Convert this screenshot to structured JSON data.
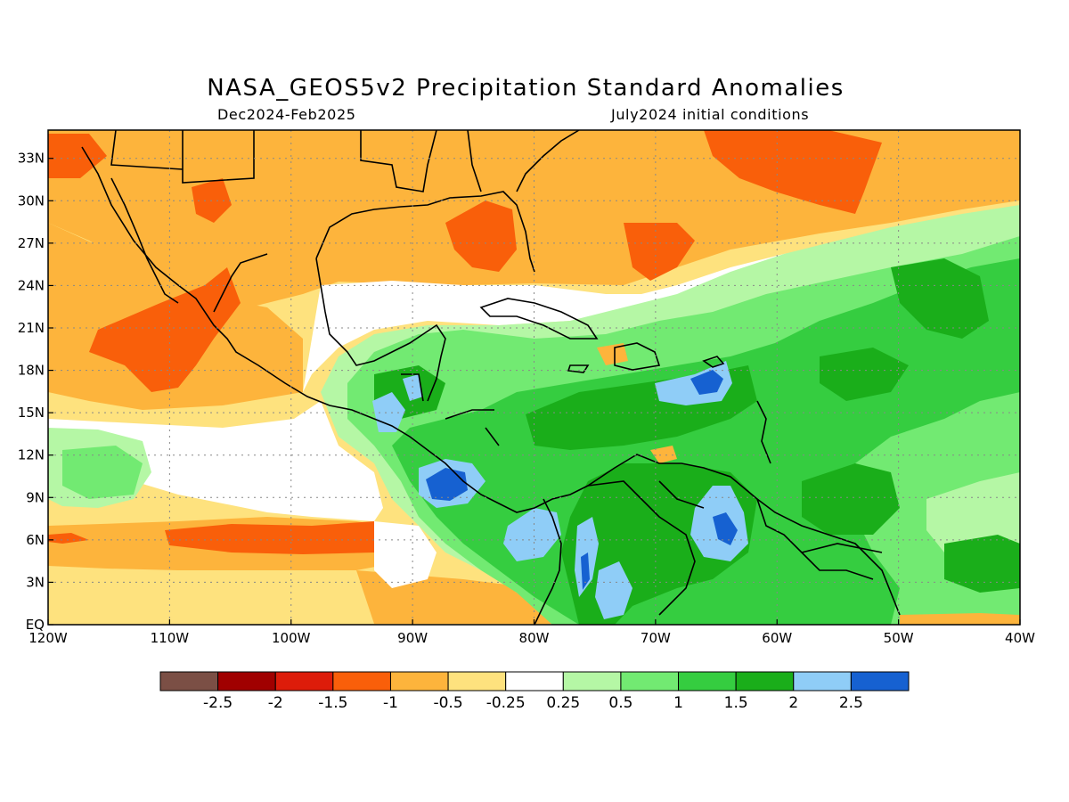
{
  "header": {
    "title": "NASA_GEOS5v2 Precipitation Standard Anomalies",
    "period": "Dec2024-Feb2025",
    "init": "July2024 initial conditions"
  },
  "map": {
    "lon_range": [
      -120,
      -40
    ],
    "lat_range": [
      0,
      35
    ],
    "lon_ticks": [
      {
        "v": -120,
        "label": "120W"
      },
      {
        "v": -110,
        "label": "110W"
      },
      {
        "v": -100,
        "label": "100W"
      },
      {
        "v": -90,
        "label": "90W"
      },
      {
        "v": -80,
        "label": "80W"
      },
      {
        "v": -70,
        "label": "70W"
      },
      {
        "v": -60,
        "label": "60W"
      },
      {
        "v": -50,
        "label": "50W"
      },
      {
        "v": -40,
        "label": "40W"
      }
    ],
    "lat_ticks": [
      {
        "v": 0,
        "label": "EQ"
      },
      {
        "v": 3,
        "label": "3N"
      },
      {
        "v": 6,
        "label": "6N"
      },
      {
        "v": 9,
        "label": "9N"
      },
      {
        "v": 12,
        "label": "12N"
      },
      {
        "v": 15,
        "label": "15N"
      },
      {
        "v": 18,
        "label": "18N"
      },
      {
        "v": 21,
        "label": "21N"
      },
      {
        "v": 24,
        "label": "24N"
      },
      {
        "v": 27,
        "label": "27N"
      },
      {
        "v": 30,
        "label": "30N"
      },
      {
        "v": 33,
        "label": "33N"
      }
    ],
    "grid": true
  },
  "colorbar": {
    "colors": [
      "#7b4f45",
      "#a00000",
      "#dd1c0a",
      "#f95f0a",
      "#fdb43c",
      "#fee27e",
      "#ffffff",
      "#b5f7a5",
      "#72ea72",
      "#35cd40",
      "#1aae1a",
      "#8fcdf7",
      "#1661d1"
    ],
    "labels": [
      "-2.5",
      "-2",
      "-1.5",
      "-1",
      "-0.5",
      "-0.25",
      "0.25",
      "0.5",
      "1",
      "1.5",
      "2",
      "2.5"
    ]
  }
}
